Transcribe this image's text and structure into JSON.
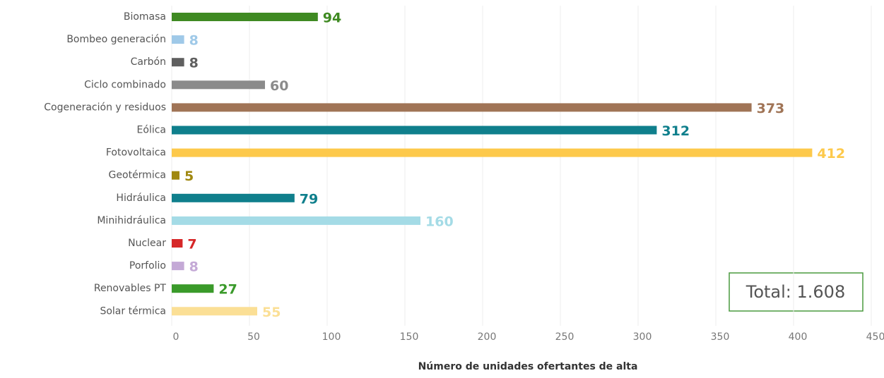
{
  "chart_data": {
    "type": "bar",
    "orientation": "horizontal",
    "categories": [
      "Biomasa",
      "Bombeo generación",
      "Carbón",
      "Ciclo combinado",
      "Cogeneración y residuos",
      "Eólica",
      "Fotovoltaica",
      "Geotérmica",
      "Hidráulica",
      "Minihidráulica",
      "Nuclear",
      "Porfolio",
      "Renovables PT",
      "Solar térmica"
    ],
    "values": [
      94,
      8,
      8,
      60,
      373,
      312,
      412,
      5,
      79,
      160,
      7,
      8,
      27,
      55
    ],
    "colors": [
      "#3f8a22",
      "#9fc9e8",
      "#5f5f5f",
      "#8b8b8b",
      "#a07456",
      "#0f7f8c",
      "#fdc94b",
      "#a08810",
      "#0f7f8c",
      "#a4dbe6",
      "#d62728",
      "#c4a9d6",
      "#3a9a2a",
      "#fbdf95"
    ],
    "xlim": [
      0,
      450
    ],
    "xticks": [
      0,
      50,
      100,
      150,
      200,
      250,
      300,
      350,
      400,
      450
    ],
    "xlabel": "Número de unidades ofertantes de alta",
    "annotation": "Total: 1.608",
    "grid": true
  }
}
